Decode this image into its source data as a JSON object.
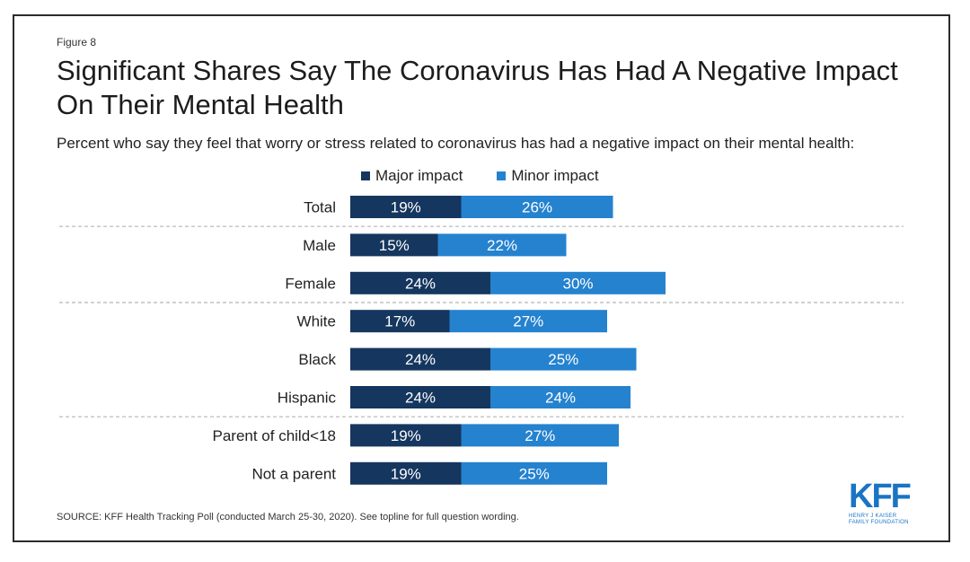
{
  "figure_label": "Figure 8",
  "title": "Significant Shares Say The Coronavirus Has Had A Negative Impact On Their Mental Health",
  "subtitle": "Percent who say they feel that worry or stress related to coronavirus has had a negative impact on their mental health:",
  "source": "SOURCE: KFF Health Tracking Poll (conducted March 25-30, 2020). See topline for full question wording.",
  "logo": {
    "name": "KFF",
    "subtitle_line1": "HENRY J KAISER",
    "subtitle_line2": "FAMILY FOUNDATION"
  },
  "colors": {
    "major": "#15365e",
    "minor": "#2582cf",
    "divider": "#b5b5b5"
  },
  "chart_data": {
    "type": "bar",
    "orientation": "horizontal",
    "stacked": true,
    "title": "Significant Shares Say The Coronavirus Has Had A Negative Impact On Their Mental Health",
    "categories": [
      "Total",
      "Male",
      "Female",
      "White",
      "Black",
      "Hispanic",
      "Parent of child<18",
      "Not a parent"
    ],
    "series": [
      {
        "name": "Major impact",
        "values": [
          19,
          15,
          24,
          17,
          24,
          24,
          19,
          19
        ],
        "labels": [
          "19%",
          "15%",
          "24%",
          "17%",
          "24%",
          "24%",
          "19%",
          "19%"
        ]
      },
      {
        "name": "Minor impact",
        "values": [
          26,
          22,
          30,
          27,
          25,
          24,
          27,
          25
        ],
        "labels": [
          "26%",
          "22%",
          "30%",
          "27%",
          "25%",
          "24%",
          "27%",
          "25%"
        ]
      }
    ],
    "group_dividers_after": [
      "Total",
      "Female",
      "Hispanic"
    ],
    "xlim": [
      0,
      100
    ],
    "legend": "top",
    "grid": false
  }
}
